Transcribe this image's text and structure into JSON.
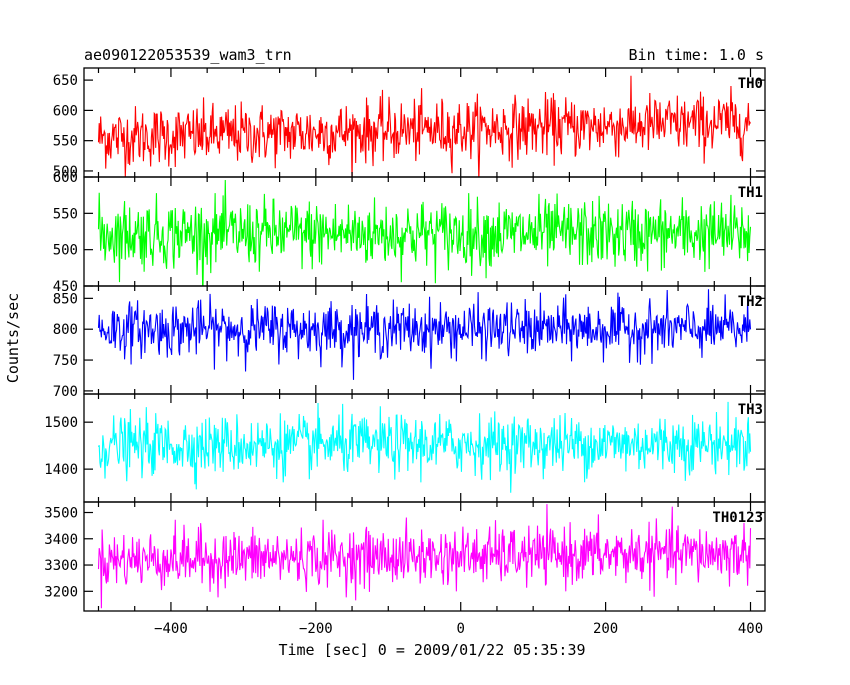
{
  "header": {
    "title": "ae090122053539_wam3_trn",
    "bin_time": "Bin time: 1.0 s"
  },
  "chart_data": {
    "type": "line",
    "title": "ae090122053539_wam3_trn",
    "subtitle": "Bin time: 1.0 s",
    "xlabel": "Time [sec] 0 = 2009/01/22 05:35:39",
    "ylabel": "Counts/sec",
    "xlim": [
      -520,
      420
    ],
    "x_ticks": [
      -400,
      -200,
      0,
      200,
      400
    ],
    "x_tick_labels": [
      "−400",
      "−200",
      "0",
      "200",
      "400"
    ],
    "bin_time_s": 1.0,
    "x_range": [
      -500,
      400
    ],
    "grid": false,
    "legend": "none",
    "panels": [
      {
        "name": "TH0",
        "color": "#ff0000",
        "ylim": [
          490,
          670
        ],
        "y_ticks": [
          500,
          550,
          600,
          650
        ],
        "y_tick_labels": [
          "500",
          "550",
          "600",
          "650"
        ],
        "mean_start": 555,
        "mean_end": 580,
        "spread": 32
      },
      {
        "name": "TH1",
        "color": "#00ff00",
        "ylim": [
          450,
          600
        ],
        "y_ticks": [
          450,
          500,
          550,
          600
        ],
        "y_tick_labels": [
          "450",
          "500",
          "550",
          "600"
        ],
        "mean_start": 522,
        "mean_end": 522,
        "spread": 30
      },
      {
        "name": "TH2",
        "color": "#0000ff",
        "ylim": [
          695,
          870
        ],
        "y_ticks": [
          700,
          750,
          800,
          850
        ],
        "y_tick_labels": [
          "700",
          "750",
          "800",
          "850"
        ],
        "mean_start": 800,
        "mean_end": 800,
        "spread": 28
      },
      {
        "name": "TH3",
        "color": "#00ffff",
        "ylim": [
          1330,
          1560
        ],
        "y_ticks": [
          1400,
          1500
        ],
        "y_tick_labels": [
          "1400",
          "1500"
        ],
        "mean_start": 1450,
        "mean_end": 1455,
        "spread": 40
      },
      {
        "name": "TH0123",
        "color": "#ff00ff",
        "ylim": [
          3125,
          3540
        ],
        "y_ticks": [
          3200,
          3300,
          3400,
          3500
        ],
        "y_tick_labels": [
          "3200",
          "3300",
          "3400",
          "3500"
        ],
        "mean_start": 3320,
        "mean_end": 3345,
        "spread": 70
      }
    ]
  }
}
